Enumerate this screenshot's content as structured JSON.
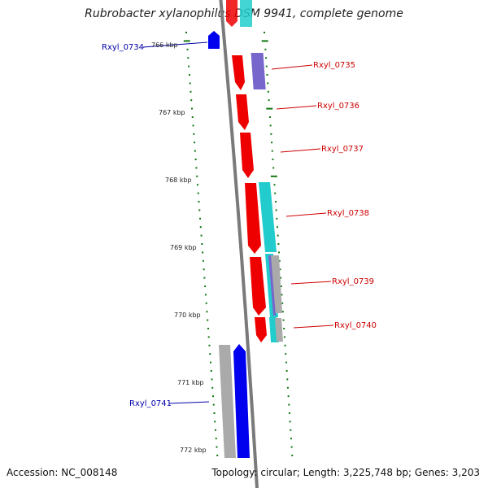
{
  "title": "Rubrobacter xylanophilus DSM 9941, complete genome",
  "footer": {
    "accession": "Accession: NC_008148",
    "topology": "Topology: circular; Length: 3,225,748 bp; Genes: 3,203"
  },
  "colors": {
    "forward_gene": "#ee0000",
    "reverse_gene": "#0000ee",
    "cyan_feature": "#22cccc",
    "violet_feature": "#7766cc",
    "grey_feature": "#aaaaaa",
    "backbone": "#7a7a7a",
    "tick": "#117711",
    "forward_label": "#cc0000",
    "reverse_label": "#0000aa"
  },
  "kbp_labels": [
    {
      "text": "766 kbp",
      "value": 766
    },
    {
      "text": "767 kbp",
      "value": 767
    },
    {
      "text": "768 kbp",
      "value": 768
    },
    {
      "text": "769 kbp",
      "value": 769
    },
    {
      "text": "770 kbp",
      "value": 770
    },
    {
      "text": "771 kbp",
      "value": 771
    },
    {
      "text": "772 kbp",
      "value": 772
    }
  ],
  "genes": [
    {
      "label": "Rxyl_0734",
      "strand": "reverse"
    },
    {
      "label": "Rxyl_0735",
      "strand": "forward"
    },
    {
      "label": "Rxyl_0736",
      "strand": "forward"
    },
    {
      "label": "Rxyl_0737",
      "strand": "forward"
    },
    {
      "label": "Rxyl_0738",
      "strand": "forward"
    },
    {
      "label": "Rxyl_0739",
      "strand": "forward"
    },
    {
      "label": "Rxyl_0740",
      "strand": "forward"
    },
    {
      "label": "Rxyl_0741",
      "strand": "reverse"
    }
  ]
}
